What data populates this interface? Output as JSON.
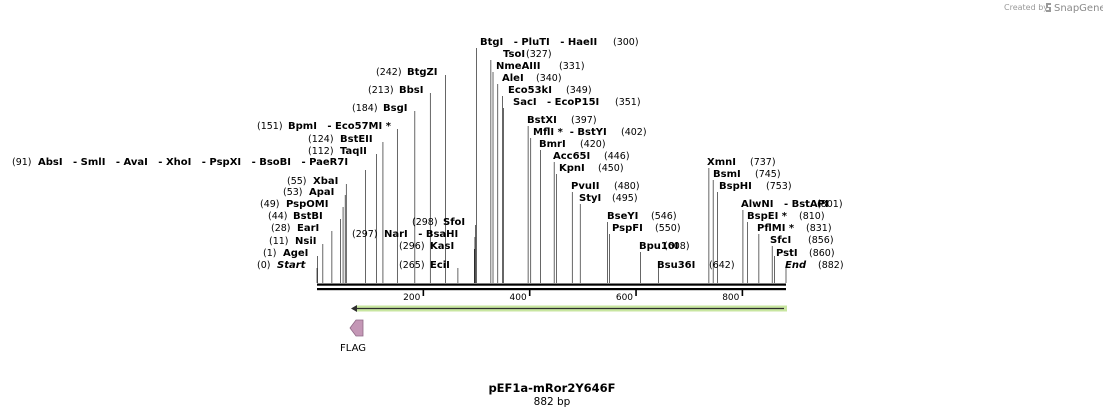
{
  "credit": {
    "prefix": "Created by",
    "brand": "SnapGene"
  },
  "map": {
    "name": "pEF1a-mRor2Y646F",
    "length_label": "882 bp",
    "length_bp": 882,
    "ticks": [
      200,
      400,
      600,
      800
    ],
    "colors": {
      "backbone": "#000000",
      "arrow_fill": "#80ff00",
      "arrow_stroke": "#c8e6a0",
      "feature_fill": "#c497b6",
      "feature_stroke": "#8f6a86",
      "leader": "#000000"
    }
  },
  "features": [
    {
      "name": "FLAG",
      "start": 68,
      "end": 91,
      "direction": "reverse"
    },
    {
      "name": "",
      "start": 68,
      "end": 882,
      "direction": "reverse",
      "type": "green-arrow"
    }
  ],
  "sites": [
    {
      "num": "(0)",
      "text": "Start",
      "pos": 0,
      "kind": "end"
    },
    {
      "num": "(1)",
      "text": "AgeI",
      "pos": 1
    },
    {
      "num": "(11)",
      "text": "NsiI",
      "pos": 11
    },
    {
      "num": "(28)",
      "text": "EarI",
      "pos": 28
    },
    {
      "num": "(44)",
      "text": "BstBI",
      "pos": 44
    },
    {
      "num": "(49)",
      "text": "PspOMI",
      "pos": 49
    },
    {
      "num": "(53)",
      "text": "ApaI",
      "pos": 53
    },
    {
      "num": "(55)",
      "text": "XbaI",
      "pos": 55
    },
    {
      "num": "(91)",
      "text": "AbsI   - SmlI   - AvaI   - XhoI   - PspXI   - BsoBI   - PaeR7I",
      "pos": 91
    },
    {
      "num": "(112)",
      "text": "TaqII",
      "pos": 112
    },
    {
      "num": "(124)",
      "text": "BstEII",
      "pos": 124
    },
    {
      "num": "(151)",
      "text": "BpmI   - Eco57MI *",
      "pos": 151
    },
    {
      "num": "(184)",
      "text": "BsgI",
      "pos": 184
    },
    {
      "num": "(213)",
      "text": "BbsI",
      "pos": 213
    },
    {
      "num": "(242)",
      "text": "BtgZI",
      "pos": 242
    },
    {
      "num": "(265)",
      "text": "EciI",
      "pos": 265
    },
    {
      "num": "(296)",
      "text": "KasI",
      "pos": 296
    },
    {
      "num": "(297)",
      "text": "NarI   - BsaHI",
      "pos": 297
    },
    {
      "num": "(298)",
      "text": "SfoI",
      "pos": 298
    },
    {
      "num": "(300)",
      "text": "BtgI   - PluTI   - HaeII",
      "pos": 300
    },
    {
      "num": "(327)",
      "text": "TsoI",
      "pos": 327
    },
    {
      "num": "(331)",
      "text": "NmeAIII",
      "pos": 331
    },
    {
      "num": "(340)",
      "text": "AleI",
      "pos": 340
    },
    {
      "num": "(349)",
      "text": "Eco53kI",
      "pos": 349
    },
    {
      "num": "(351)",
      "text": "SacI   - EcoP15I",
      "pos": 351
    },
    {
      "num": "(397)",
      "text": "BstXI",
      "pos": 397
    },
    {
      "num": "(402)",
      "text": "MflI *  - BstYI",
      "pos": 402
    },
    {
      "num": "(420)",
      "text": "BmrI",
      "pos": 420
    },
    {
      "num": "(446)",
      "text": "Acc65I",
      "pos": 446
    },
    {
      "num": "(450)",
      "text": "KpnI",
      "pos": 450
    },
    {
      "num": "(480)",
      "text": "PvuII",
      "pos": 480
    },
    {
      "num": "(495)",
      "text": "StyI",
      "pos": 495
    },
    {
      "num": "(546)",
      "text": "BseYI",
      "pos": 546
    },
    {
      "num": "(550)",
      "text": "PspFI",
      "pos": 550
    },
    {
      "num": "(608)",
      "text": "Bpu10I",
      "pos": 608
    },
    {
      "num": "(642)",
      "text": "Bsu36I",
      "pos": 642
    },
    {
      "num": "(737)",
      "text": "XmnI",
      "pos": 737
    },
    {
      "num": "(745)",
      "text": "BsmI",
      "pos": 745
    },
    {
      "num": "(753)",
      "text": "BspHI",
      "pos": 753
    },
    {
      "num": "(801)",
      "text": "AlwNI   - BstAPI",
      "pos": 801
    },
    {
      "num": "(810)",
      "text": "BspEI *",
      "pos": 810
    },
    {
      "num": "(831)",
      "text": "PflMI *",
      "pos": 831
    },
    {
      "num": "(856)",
      "text": "SfcI",
      "pos": 856
    },
    {
      "num": "(860)",
      "text": "PstI",
      "pos": 860
    },
    {
      "num": "(882)",
      "text": "End",
      "pos": 882,
      "kind": "end"
    }
  ]
}
